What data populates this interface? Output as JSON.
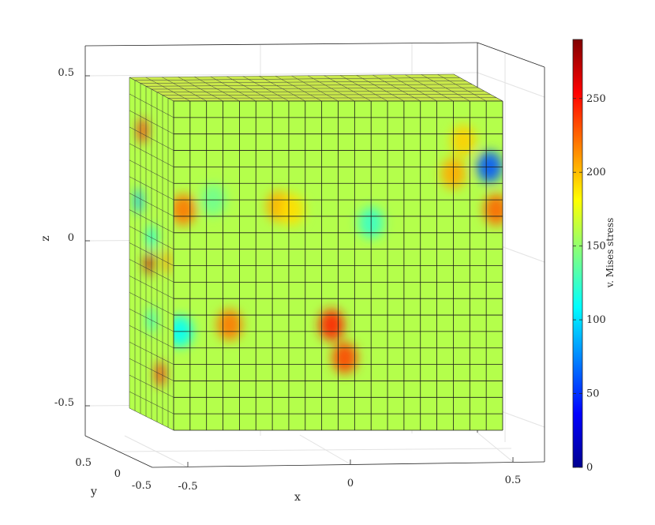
{
  "chart_data": {
    "type": "heatmap",
    "subtype": "3d-mesh-surface",
    "x": {
      "label": "x",
      "lim": [
        -0.6,
        0.6
      ],
      "ticks": [
        -0.5,
        0,
        0.5
      ],
      "tick_labels": [
        "-0.5",
        "0",
        "0.5"
      ]
    },
    "y": {
      "label": "y",
      "lim": [
        -0.6,
        0.6
      ],
      "ticks": [
        0.5,
        0,
        -0.5
      ],
      "tick_labels": [
        "0.5",
        "0",
        "-0.5"
      ]
    },
    "z": {
      "label": "z",
      "lim": [
        -0.6,
        0.6
      ],
      "ticks": [
        0.5,
        0,
        -0.5
      ],
      "tick_labels": [
        "0.5",
        "0",
        "-0.5"
      ]
    },
    "mesh": {
      "front_columns": 20,
      "front_rows": 20,
      "side_columns": 8
    },
    "colorbar": {
      "label": "v. Mises stress",
      "range": [
        0,
        290
      ],
      "ticks": [
        0,
        50,
        100,
        150,
        200,
        250
      ],
      "tick_labels": [
        "0",
        "50",
        "100",
        "150",
        "200",
        "250"
      ],
      "colormap": "jet"
    },
    "base_value": 160,
    "hotspots": [
      {
        "face": "front",
        "u": 0.48,
        "v": 0.68,
        "value": 245
      },
      {
        "face": "front",
        "u": 0.52,
        "v": 0.78,
        "value": 235
      },
      {
        "face": "front",
        "u": 0.17,
        "v": 0.68,
        "value": 220
      },
      {
        "face": "front",
        "u": 0.32,
        "v": 0.32,
        "value": 205
      },
      {
        "face": "front",
        "u": 0.03,
        "v": 0.33,
        "value": 220
      },
      {
        "face": "front",
        "u": 0.85,
        "v": 0.22,
        "value": 205
      },
      {
        "face": "front",
        "u": 0.88,
        "v": 0.12,
        "value": 195
      },
      {
        "face": "front",
        "u": 0.12,
        "v": 0.3,
        "value": 140
      },
      {
        "face": "front",
        "u": 0.36,
        "v": 0.33,
        "value": 190
      },
      {
        "face": "front",
        "u": 0.98,
        "v": 0.33,
        "value": 225
      },
      {
        "face": "front",
        "u": 0.96,
        "v": 0.2,
        "value": 60
      },
      {
        "face": "front",
        "u": 0.02,
        "v": 0.7,
        "value": 110
      },
      {
        "face": "front",
        "u": 0.6,
        "v": 0.37,
        "value": 125
      },
      {
        "face": "side",
        "u": 0.3,
        "v": 0.14,
        "value": 250
      },
      {
        "face": "side",
        "u": 0.45,
        "v": 0.53,
        "value": 270
      },
      {
        "face": "side",
        "u": 0.7,
        "v": 0.85,
        "value": 250
      },
      {
        "face": "side",
        "u": 0.2,
        "v": 0.36,
        "value": 90
      },
      {
        "face": "side",
        "u": 0.5,
        "v": 0.45,
        "value": 110
      },
      {
        "face": "side",
        "u": 0.5,
        "v": 0.7,
        "value": 120
      },
      {
        "face": "side",
        "u": 0.85,
        "v": 0.5,
        "value": 210
      }
    ]
  }
}
